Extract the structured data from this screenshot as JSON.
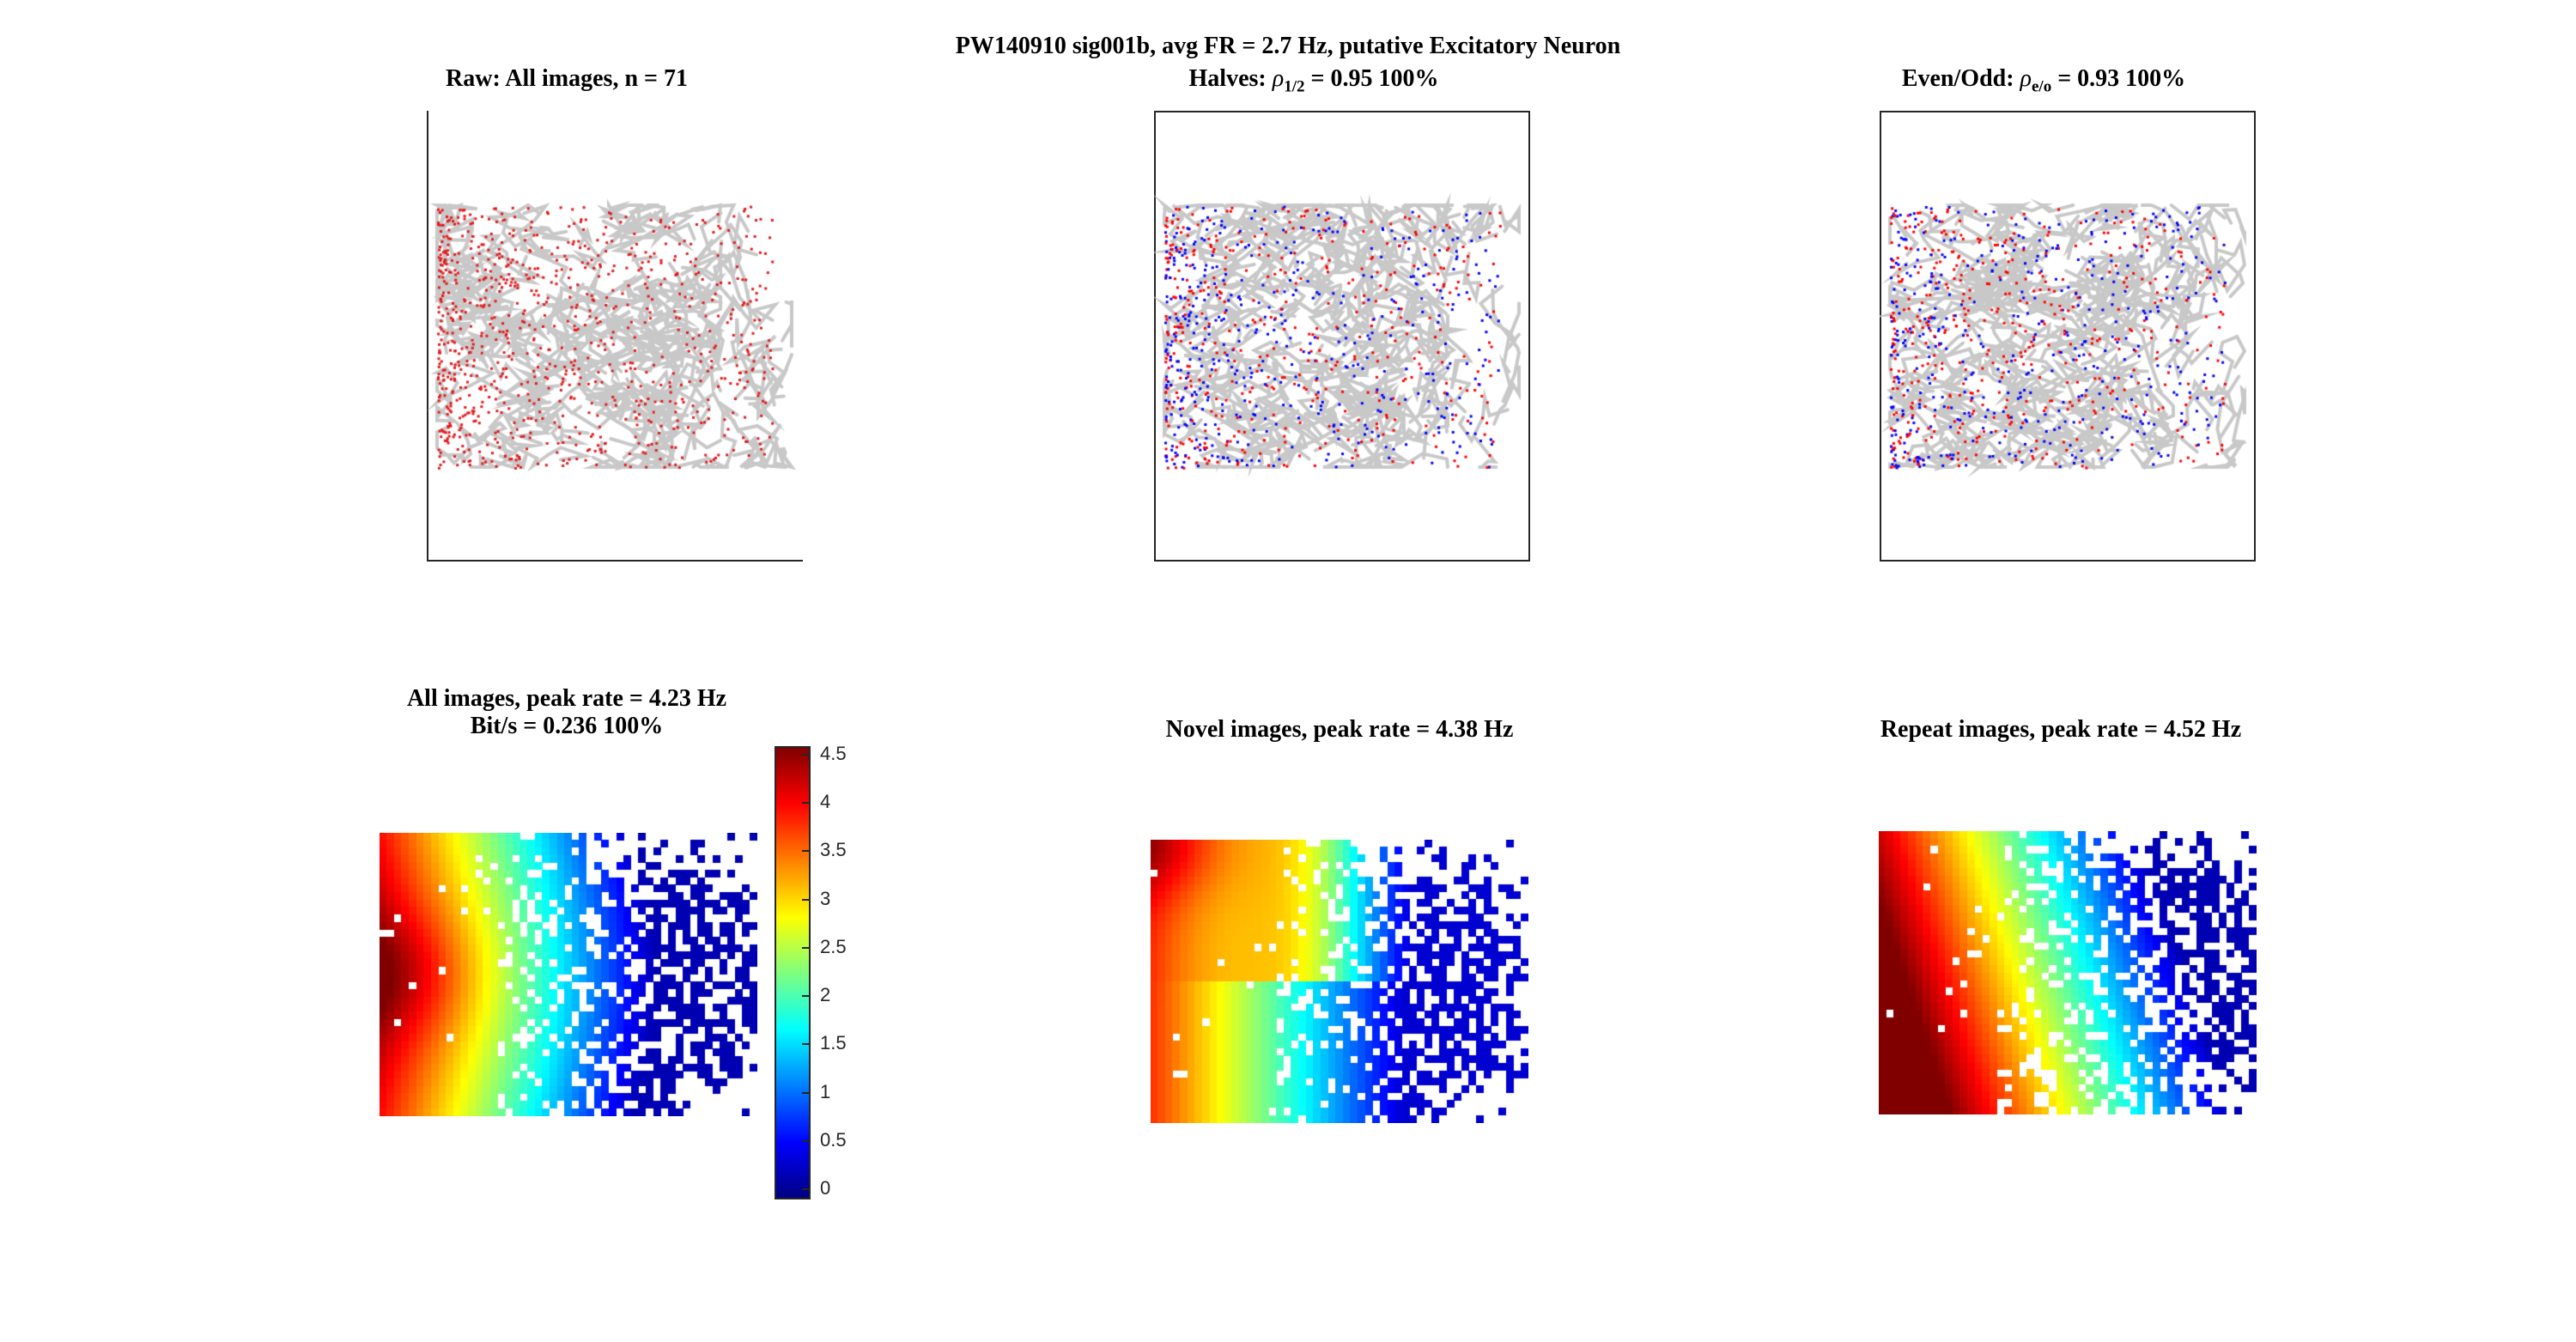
{
  "figure": {
    "suptitle": "PW140910  sig001b, avg FR = 2.7 Hz, putative Excitatory Neuron"
  },
  "panels": {
    "raw": {
      "title": "Raw: All images, n = 71"
    },
    "halves": {
      "title_prefix": "Halves: ",
      "rho": "ρ",
      "rho_sub": "1/2",
      "title_suffix": " = 0.95 100%"
    },
    "evenodd": {
      "title_prefix": "Even/Odd: ",
      "rho": "ρ",
      "rho_sub": "e/o",
      "title_suffix": " = 0.93 100%"
    },
    "all_map": {
      "title_line1": "All images, peak rate = 4.23 Hz",
      "title_line2": "Bit/s = 0.236 100%"
    },
    "novel_map": {
      "title": "Novel images, peak rate = 4.38 Hz"
    },
    "repeat_map": {
      "title": "Repeat images, peak rate = 4.52 Hz"
    }
  },
  "colorbar": {
    "ticks": [
      "4.5",
      "4",
      "3.5",
      "3",
      "2.5",
      "2",
      "1.5",
      "1",
      "0.5",
      "0"
    ],
    "colormap": "jet",
    "range": [
      0,
      4.5
    ]
  },
  "colors": {
    "trajectory": "#c8c8c8",
    "spike_all": "#e41a1c",
    "spike_first_half": "#0000ff",
    "spike_second_half": "#ff0000"
  },
  "chart_data": [
    {
      "type": "scatter",
      "title": "Raw: All images, n = 71",
      "series": []
    },
    {
      "type": "scatter",
      "title": "Halves: ρ1/2 = 0.95 100%",
      "series": []
    },
    {
      "type": "scatter",
      "title": "Even/Odd: ρe/o = 0.93 100%",
      "series": []
    },
    {
      "type": "heatmap",
      "title": "All images, peak rate = 4.23 Hz",
      "subtitle": "Bit/s = 0.236 100%",
      "zlim": [
        0,
        4.5
      ],
      "peak": 4.23
    },
    {
      "type": "heatmap",
      "title": "Novel images, peak rate = 4.38 Hz",
      "zlim": [
        0,
        4.5
      ],
      "peak": 4.38
    },
    {
      "type": "heatmap",
      "title": "Repeat images, peak rate = 4.52 Hz",
      "zlim": [
        0,
        4.5
      ],
      "peak": 4.52
    }
  ]
}
